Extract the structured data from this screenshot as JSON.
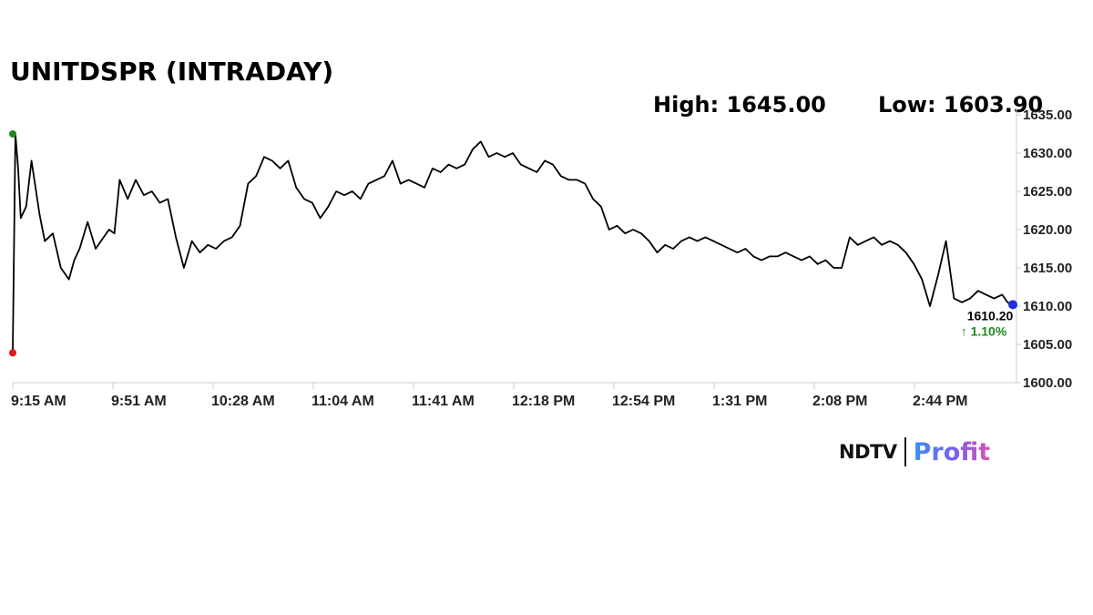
{
  "header": {
    "title": "UNITDSPR (INTRADAY)",
    "high_label": "High: 1645.00",
    "low_label": "Low: 1603.90"
  },
  "chart_data": {
    "type": "line",
    "title": "UNITDSPR (INTRADAY)",
    "xlabel": "",
    "ylabel": "",
    "x_ticks": [
      "9:15 AM",
      "9:51 AM",
      "10:28 AM",
      "11:04 AM",
      "11:41 AM",
      "12:18 PM",
      "12:54 PM",
      "1:31 PM",
      "2:08 PM",
      "2:44 PM"
    ],
    "y_ticks": [
      "1600.00",
      "1605.00",
      "1610.00",
      "1615.00",
      "1620.00",
      "1625.00",
      "1630.00",
      "1635.00"
    ],
    "ylim": [
      1600,
      1635
    ],
    "grid": false,
    "legend": "none",
    "series": [
      {
        "time": [
          "9:15",
          "9:16",
          "9:17",
          "9:18",
          "9:20",
          "9:22",
          "9:25",
          "9:27",
          "9:30",
          "9:33",
          "9:36",
          "9:38",
          "9:40",
          "9:43",
          "9:46",
          "9:49",
          "9:51",
          "9:53",
          "9:55",
          "9:58",
          "10:01",
          "10:04",
          "10:07",
          "10:10",
          "10:13",
          "10:16",
          "10:19",
          "10:22",
          "10:25",
          "10:28",
          "10:31",
          "10:34",
          "10:37",
          "10:40",
          "10:43",
          "10:46",
          "10:49",
          "10:52",
          "10:55",
          "10:58",
          "11:01",
          "11:04",
          "11:07",
          "11:10",
          "11:13",
          "11:16",
          "11:19",
          "11:22",
          "11:25",
          "11:28",
          "11:31",
          "11:34",
          "11:37",
          "11:40",
          "11:43",
          "11:46",
          "11:49",
          "11:52",
          "11:55",
          "11:58",
          "12:01",
          "12:04",
          "12:07",
          "12:10",
          "12:13",
          "12:16",
          "12:19",
          "12:22",
          "12:25",
          "12:28",
          "12:31",
          "12:34",
          "12:37",
          "12:40",
          "12:43",
          "12:46",
          "12:49",
          "12:52",
          "12:55",
          "12:58",
          "13:01",
          "13:04",
          "13:07",
          "13:10",
          "13:13",
          "13:16",
          "13:19",
          "13:22",
          "13:25",
          "13:28",
          "13:31",
          "13:34",
          "13:37",
          "13:40",
          "13:43",
          "13:46",
          "13:49",
          "13:52",
          "13:55",
          "13:58",
          "14:01",
          "14:04",
          "14:07",
          "14:10",
          "14:13",
          "14:16",
          "14:19",
          "14:22",
          "14:25",
          "14:28",
          "14:31",
          "14:34",
          "14:37",
          "14:40",
          "14:43",
          "14:46",
          "14:49",
          "14:52",
          "14:55",
          "14:58",
          "15:01",
          "15:04",
          "15:07",
          "15:10",
          "15:13",
          "15:16",
          "15:19",
          "15:22",
          "15:25",
          "15:27",
          "15:29"
        ],
        "values": [
          1604.0,
          1632.5,
          1628.0,
          1621.5,
          1623.0,
          1629.0,
          1622.0,
          1618.5,
          1619.5,
          1615.0,
          1613.5,
          1616.0,
          1617.5,
          1621.0,
          1617.5,
          1619.0,
          1620.0,
          1619.5,
          1626.5,
          1624.0,
          1626.5,
          1624.5,
          1625.0,
          1623.5,
          1624.0,
          1619.0,
          1615.0,
          1618.5,
          1617.0,
          1618.0,
          1617.5,
          1618.5,
          1619.0,
          1620.5,
          1626.0,
          1627.0,
          1629.5,
          1629.0,
          1628.0,
          1629.0,
          1625.5,
          1624.0,
          1623.5,
          1621.5,
          1623.0,
          1625.0,
          1624.5,
          1625.0,
          1624.0,
          1626.0,
          1626.5,
          1627.0,
          1629.0,
          1626.0,
          1626.5,
          1626.0,
          1625.5,
          1628.0,
          1627.5,
          1628.5,
          1628.0,
          1628.5,
          1630.5,
          1631.5,
          1629.5,
          1630.0,
          1629.5,
          1630.0,
          1628.5,
          1628.0,
          1627.5,
          1629.0,
          1628.5,
          1627.0,
          1626.5,
          1626.5,
          1626.0,
          1624.0,
          1623.0,
          1620.0,
          1620.5,
          1619.5,
          1620.0,
          1619.5,
          1618.5,
          1617.0,
          1618.0,
          1617.5,
          1618.5,
          1619.0,
          1618.5,
          1619.0,
          1618.5,
          1618.0,
          1617.5,
          1617.0,
          1617.5,
          1616.5,
          1616.0,
          1616.5,
          1616.5,
          1617.0,
          1616.5,
          1616.0,
          1616.5,
          1615.5,
          1616.0,
          1615.0,
          1615.0,
          1619.0,
          1618.0,
          1618.5,
          1619.0,
          1618.0,
          1618.5,
          1618.0,
          1617.0,
          1615.5,
          1613.5,
          1610.0,
          1614.0,
          1618.5,
          1611.0,
          1610.5,
          1611.0,
          1612.0,
          1611.5,
          1611.0,
          1611.5,
          1610.5,
          1610.2
        ]
      }
    ],
    "open_marker": 1632.5,
    "low_marker": 1603.9,
    "last_price": {
      "value": 1610.2,
      "label": "1610.20",
      "change_label": "↑ 1.10%"
    },
    "colors": {
      "line": "#000000",
      "open_dot": "#1e8a1e",
      "low_dot": "#e01818",
      "last_dot": "#1f2ed8",
      "change_text": "#1e8a1e",
      "axis": "#cccccc"
    }
  },
  "brand": {
    "ndtv": "NDTV",
    "profit": "Profit",
    "colors": [
      "#3d8df5",
      "#7a5ff0",
      "#e14fb6"
    ]
  }
}
